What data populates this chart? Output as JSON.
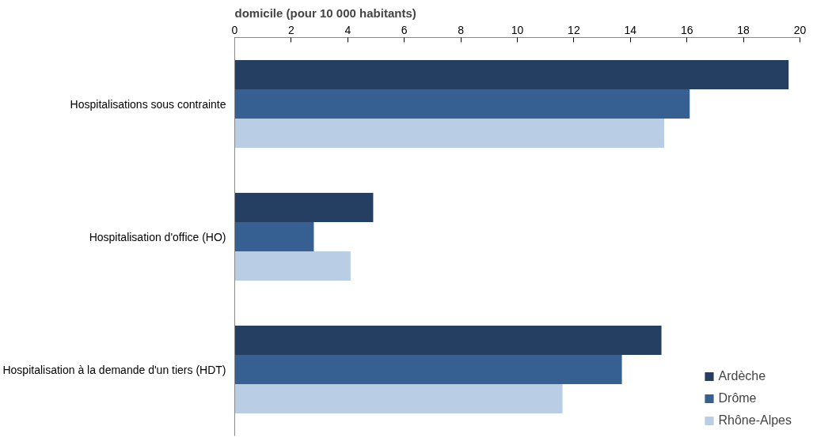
{
  "chart_data": {
    "type": "bar",
    "orientation": "horizontal",
    "title": "domicile (pour 10 000 habitants)",
    "categories": [
      "Hospitalisations sous contrainte",
      "Hospitalisation d'office (HO)",
      "Hospitalisation à la demande d'un tiers (HDT)"
    ],
    "series": [
      {
        "name": "Ardèche",
        "color": "#253f62",
        "values": [
          19.6,
          4.9,
          15.1
        ]
      },
      {
        "name": "Drôme",
        "color": "#366092",
        "values": [
          16.1,
          2.8,
          13.7
        ]
      },
      {
        "name": "Rhône-Alpes",
        "color": "#b9cde5",
        "values": [
          15.2,
          4.1,
          11.6
        ]
      }
    ],
    "xlim": [
      0,
      20
    ],
    "xticks": [
      0,
      2,
      4,
      6,
      8,
      10,
      12,
      14,
      16,
      18,
      20
    ],
    "grid": false,
    "legend": "bottom right"
  }
}
